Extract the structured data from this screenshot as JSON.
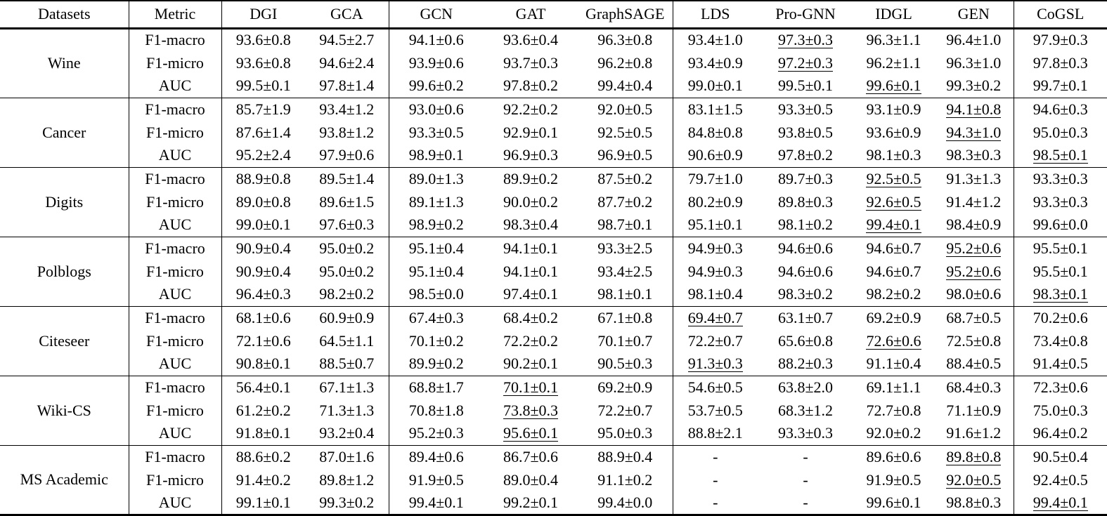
{
  "colors": {
    "text": "#000000",
    "background": "#ffffff",
    "rule": "#000000"
  },
  "table": {
    "columns": [
      {
        "label": "Datasets",
        "bold": false
      },
      {
        "label": "Metric",
        "bold": false
      },
      {
        "label": "DGI",
        "bold": false
      },
      {
        "label": "GCA",
        "bold": false
      },
      {
        "label": "GCN",
        "bold": false
      },
      {
        "label": "GAT",
        "bold": false
      },
      {
        "label": "GraphSAGE",
        "bold": false
      },
      {
        "label": "LDS",
        "bold": false
      },
      {
        "label": "Pro-GNN",
        "bold": false
      },
      {
        "label": "IDGL",
        "bold": false
      },
      {
        "label": "GEN",
        "bold": false
      },
      {
        "label": "CoGSL",
        "bold": true
      }
    ],
    "datasets": [
      {
        "name": "Wine",
        "rows": [
          {
            "metric": "F1-macro",
            "cells": [
              "93.6±0.8",
              "94.5±2.7",
              "94.1±0.6",
              "93.6±0.4",
              "96.3±0.8",
              "93.4±1.0",
              {
                "v": "97.3±0.3",
                "mark": "underline"
              },
              "96.3±1.1",
              "96.4±1.0",
              {
                "v": "97.9±0.3",
                "mark": "bold"
              }
            ]
          },
          {
            "metric": "F1-micro",
            "cells": [
              "93.6±0.8",
              "94.6±2.4",
              "93.9±0.6",
              "93.7±0.3",
              "96.2±0.8",
              "93.4±0.9",
              {
                "v": "97.2±0.3",
                "mark": "underline"
              },
              "96.2±1.1",
              "96.3±1.0",
              {
                "v": "97.8±0.3",
                "mark": "bold"
              }
            ]
          },
          {
            "metric": "AUC",
            "cells": [
              "99.5±0.1",
              "97.8±1.4",
              "99.6±0.2",
              "97.8±0.2",
              "99.4±0.4",
              "99.0±0.1",
              "99.5±0.1",
              {
                "v": "99.6±0.1",
                "mark": "underline"
              },
              "99.3±0.2",
              {
                "v": "99.7±0.1",
                "mark": "bold"
              }
            ]
          }
        ]
      },
      {
        "name": "Cancer",
        "rows": [
          {
            "metric": "F1-macro",
            "cells": [
              "85.7±1.9",
              "93.4±1.2",
              "93.0±0.6",
              "92.2±0.2",
              "92.0±0.5",
              "83.1±1.5",
              "93.3±0.5",
              "93.1±0.9",
              {
                "v": "94.1±0.8",
                "mark": "underline"
              },
              {
                "v": "94.6±0.3",
                "mark": "bold"
              }
            ]
          },
          {
            "metric": "F1-micro",
            "cells": [
              "87.6±1.4",
              "93.8±1.2",
              "93.3±0.5",
              "92.9±0.1",
              "92.5±0.5",
              "84.8±0.8",
              "93.8±0.5",
              "93.6±0.9",
              {
                "v": "94.3±1.0",
                "mark": "underline"
              },
              {
                "v": "95.0±0.3",
                "mark": "bold"
              }
            ]
          },
          {
            "metric": "AUC",
            "cells": [
              "95.2±2.4",
              "97.9±0.6",
              {
                "v": "98.9±0.1",
                "mark": "bold"
              },
              "96.9±0.3",
              "96.9±0.5",
              "90.6±0.9",
              "97.8±0.2",
              "98.1±0.3",
              "98.3±0.3",
              {
                "v": "98.5±0.1",
                "mark": "underline"
              }
            ]
          }
        ]
      },
      {
        "name": "Digits",
        "rows": [
          {
            "metric": "F1-macro",
            "cells": [
              "88.9±0.8",
              "89.5±1.4",
              "89.0±1.3",
              "89.9±0.2",
              "87.5±0.2",
              "79.7±1.0",
              "89.7±0.3",
              {
                "v": "92.5±0.5",
                "mark": "underline"
              },
              "91.3±1.3",
              {
                "v": "93.3±0.3",
                "mark": "bold"
              }
            ]
          },
          {
            "metric": "F1-micro",
            "cells": [
              "89.0±0.8",
              "89.6±1.5",
              "89.1±1.3",
              "90.0±0.2",
              "87.7±0.2",
              "80.2±0.9",
              "89.8±0.3",
              {
                "v": "92.6±0.5",
                "mark": "underline"
              },
              "91.4±1.2",
              {
                "v": "93.3±0.3",
                "mark": "bold"
              }
            ]
          },
          {
            "metric": "AUC",
            "cells": [
              "99.0±0.1",
              "97.6±0.3",
              "98.9±0.2",
              "98.3±0.4",
              "98.7±0.1",
              "95.1±0.1",
              "98.1±0.2",
              {
                "v": "99.4±0.1",
                "mark": "underline"
              },
              "98.4±0.9",
              {
                "v": "99.6±0.0",
                "mark": "bold"
              }
            ]
          }
        ]
      },
      {
        "name": "Polblogs",
        "rows": [
          {
            "metric": "F1-macro",
            "cells": [
              "90.9±0.4",
              "95.0±0.2",
              "95.1±0.4",
              "94.1±0.1",
              "93.3±2.5",
              "94.9±0.3",
              "94.6±0.6",
              "94.6±0.7",
              {
                "v": "95.2±0.6",
                "mark": "underline"
              },
              {
                "v": "95.5±0.1",
                "mark": "bold"
              }
            ]
          },
          {
            "metric": "F1-micro",
            "cells": [
              "90.9±0.4",
              "95.0±0.2",
              "95.1±0.4",
              "94.1±0.1",
              "93.4±2.5",
              "94.9±0.3",
              "94.6±0.6",
              "94.6±0.7",
              {
                "v": "95.2±0.6",
                "mark": "underline"
              },
              {
                "v": "95.5±0.1",
                "mark": "bold"
              }
            ]
          },
          {
            "metric": "AUC",
            "cells": [
              "96.4±0.3",
              "98.2±0.2",
              {
                "v": "98.5±0.0",
                "mark": "bold"
              },
              "97.4±0.1",
              "98.1±0.1",
              "98.1±0.4",
              "98.3±0.2",
              "98.2±0.2",
              "98.0±0.6",
              {
                "v": "98.3±0.1",
                "mark": "underline"
              }
            ]
          }
        ]
      },
      {
        "name": "Citeseer",
        "rows": [
          {
            "metric": "F1-macro",
            "cells": [
              "68.1±0.6",
              "60.9±0.9",
              "67.4±0.3",
              "68.4±0.2",
              "67.1±0.8",
              {
                "v": "69.4±0.7",
                "mark": "underline"
              },
              "63.1±0.7",
              "69.2±0.9",
              "68.7±0.5",
              {
                "v": "70.2±0.6",
                "mark": "bold"
              }
            ]
          },
          {
            "metric": "F1-micro",
            "cells": [
              "72.1±0.6",
              "64.5±1.1",
              "70.1±0.2",
              "72.2±0.2",
              "70.1±0.7",
              "72.2±0.7",
              "65.6±0.8",
              {
                "v": "72.6±0.6",
                "mark": "underline"
              },
              "72.5±0.8",
              {
                "v": "73.4±0.8",
                "mark": "bold"
              }
            ]
          },
          {
            "metric": "AUC",
            "cells": [
              "90.8±0.1",
              "88.5±0.7",
              "89.9±0.2",
              "90.2±0.1",
              "90.5±0.3",
              {
                "v": "91.3±0.3",
                "mark": "underline"
              },
              "88.2±0.3",
              "91.1±0.4",
              "88.4±0.5",
              {
                "v": "91.4±0.5",
                "mark": "bold"
              }
            ]
          }
        ]
      },
      {
        "name": "Wiki-CS",
        "rows": [
          {
            "metric": "F1-macro",
            "cells": [
              "56.4±0.1",
              "67.1±1.3",
              "68.8±1.7",
              {
                "v": "70.1±0.1",
                "mark": "underline"
              },
              "69.2±0.9",
              "54.6±0.5",
              "63.8±2.0",
              "69.1±1.1",
              "68.4±0.3",
              {
                "v": "72.3±0.6",
                "mark": "bold"
              }
            ]
          },
          {
            "metric": "F1-micro",
            "cells": [
              "61.2±0.2",
              "71.3±1.3",
              "70.8±1.8",
              {
                "v": "73.8±0.3",
                "mark": "underline"
              },
              "72.2±0.7",
              "53.7±0.5",
              "68.3±1.2",
              "72.7±0.8",
              "71.1±0.9",
              {
                "v": "75.0±0.3",
                "mark": "bold"
              }
            ]
          },
          {
            "metric": "AUC",
            "cells": [
              "91.8±0.1",
              "93.2±0.4",
              "95.2±0.3",
              {
                "v": "95.6±0.1",
                "mark": "underline"
              },
              "95.0±0.3",
              "88.8±2.1",
              "93.3±0.3",
              "92.0±0.2",
              "91.6±1.2",
              {
                "v": "96.4±0.2",
                "mark": "bold"
              }
            ]
          }
        ]
      },
      {
        "name": "MS Academic",
        "rows": [
          {
            "metric": "F1-macro",
            "cells": [
              "88.6±0.2",
              "87.0±1.6",
              "89.4±0.6",
              "86.7±0.6",
              "88.9±0.4",
              "-",
              "-",
              "89.6±0.6",
              {
                "v": "89.8±0.8",
                "mark": "underline"
              },
              {
                "v": "90.5±0.4",
                "mark": "bold"
              }
            ]
          },
          {
            "metric": "F1-micro",
            "cells": [
              "91.4±0.2",
              "89.8±1.2",
              "91.9±0.5",
              "89.0±0.4",
              "91.1±0.2",
              "-",
              "-",
              "91.9±0.5",
              {
                "v": "92.0±0.5",
                "mark": "underline"
              },
              {
                "v": "92.4±0.5",
                "mark": "bold"
              }
            ]
          },
          {
            "metric": "AUC",
            "cells": [
              "99.1±0.1",
              "99.3±0.2",
              "99.4±0.1",
              "99.2±0.1",
              "99.4±0.0",
              "-",
              "-",
              {
                "v": "99.6±0.1",
                "mark": "bold"
              },
              "98.8±0.3",
              {
                "v": "99.4±0.1",
                "mark": "underline"
              }
            ]
          }
        ]
      }
    ]
  }
}
